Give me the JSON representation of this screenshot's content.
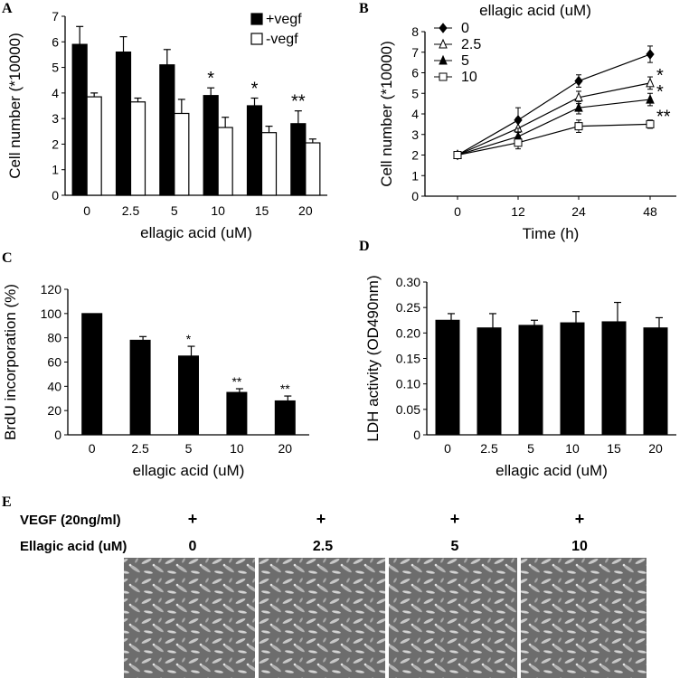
{
  "chart_data": [
    {
      "panel": "A",
      "type": "bar",
      "categories": [
        "0",
        "2.5",
        "5",
        "10",
        "15",
        "20"
      ],
      "series": [
        {
          "name": "+vegf",
          "color": "#000000",
          "values": [
            5.9,
            5.6,
            5.1,
            3.9,
            3.5,
            2.8
          ],
          "errors": [
            0.7,
            0.6,
            0.6,
            0.3,
            0.3,
            0.5
          ]
        },
        {
          "name": "-vegf",
          "color": "#ffffff",
          "values": [
            3.85,
            3.65,
            3.2,
            2.65,
            2.45,
            2.05
          ],
          "errors": [
            0.15,
            0.15,
            0.55,
            0.4,
            0.25,
            0.15
          ]
        }
      ],
      "significance": [
        "",
        "",
        "",
        "*",
        "*",
        "**"
      ],
      "xlabel": "ellagic acid (uM)",
      "ylabel": "Cell number (*10000)",
      "ylim": [
        0,
        7
      ],
      "yticks": [
        "0",
        "1",
        "2",
        "3",
        "4",
        "5",
        "6",
        "7"
      ],
      "legend_placement": "top-right",
      "grid": false
    },
    {
      "panel": "B",
      "type": "line",
      "title": "ellagic acid (uM)",
      "x": [
        "0",
        "12",
        "24",
        "48"
      ],
      "series": [
        {
          "name": "0",
          "marker": "diamond",
          "values": [
            2.0,
            3.7,
            5.6,
            6.9
          ],
          "errors": [
            0,
            0.6,
            0.3,
            0.4
          ]
        },
        {
          "name": "2.5",
          "marker": "triangle-open",
          "values": [
            2.0,
            3.3,
            4.8,
            5.5
          ],
          "errors": [
            0,
            0.5,
            0.3,
            0.3
          ]
        },
        {
          "name": "5",
          "marker": "triangle",
          "values": [
            2.0,
            2.9,
            4.3,
            4.7
          ],
          "errors": [
            0,
            0.4,
            0.3,
            0.3
          ]
        },
        {
          "name": "10",
          "marker": "square-open",
          "values": [
            2.0,
            2.6,
            3.4,
            3.5
          ],
          "errors": [
            0,
            0.3,
            0.3,
            0.2
          ]
        }
      ],
      "significance": [
        [
          "",
          "",
          "",
          ""
        ],
        [
          "",
          "",
          "",
          "*"
        ],
        [
          "",
          "",
          "",
          "*"
        ],
        [
          "",
          "",
          "",
          "**"
        ]
      ],
      "xlabel": "Time (h)",
      "ylabel": "Cell number (*10000)",
      "ylim": [
        0,
        8
      ],
      "yticks": [
        "0",
        "1",
        "2",
        "3",
        "4",
        "5",
        "6",
        "7",
        "8"
      ],
      "legend_placement": "top-left",
      "grid": false
    },
    {
      "panel": "C",
      "type": "bar",
      "categories": [
        "0",
        "2.5",
        "5",
        "10",
        "20"
      ],
      "values": [
        100,
        78,
        65,
        35,
        28
      ],
      "errors": [
        0,
        3,
        8,
        3,
        4
      ],
      "significance": [
        "",
        "",
        "*",
        "**",
        "**"
      ],
      "xlabel": "ellagic acid (uM)",
      "ylabel": "BrdU incorporation (%)",
      "ylim": [
        0,
        120
      ],
      "yticks": [
        "0",
        "20",
        "40",
        "60",
        "80",
        "100",
        "120"
      ],
      "grid": false
    },
    {
      "panel": "D",
      "type": "bar",
      "categories": [
        "0",
        "2.5",
        "5",
        "10",
        "15",
        "20"
      ],
      "values": [
        0.225,
        0.21,
        0.215,
        0.22,
        0.222,
        0.21
      ],
      "errors": [
        0.013,
        0.028,
        0.01,
        0.022,
        0.038,
        0.02
      ],
      "xlabel": "ellagic acid (uM)",
      "ylabel": "LDH activity (OD490nm)",
      "ylim": [
        0,
        0.3
      ],
      "yticks": [
        "0",
        "0.05",
        "0.10",
        "0.15",
        "0.20",
        "0.25",
        "0.30"
      ],
      "grid": false
    }
  ],
  "panel_e": {
    "letter": "E",
    "vegf_label": "VEGF (20ng/ml)",
    "ellagic_label": "Ellagic acid (uM)",
    "vegf_values": [
      "+",
      "+",
      "+",
      "+"
    ],
    "ellagic_values": [
      "0",
      "2.5",
      "5",
      "10"
    ]
  }
}
